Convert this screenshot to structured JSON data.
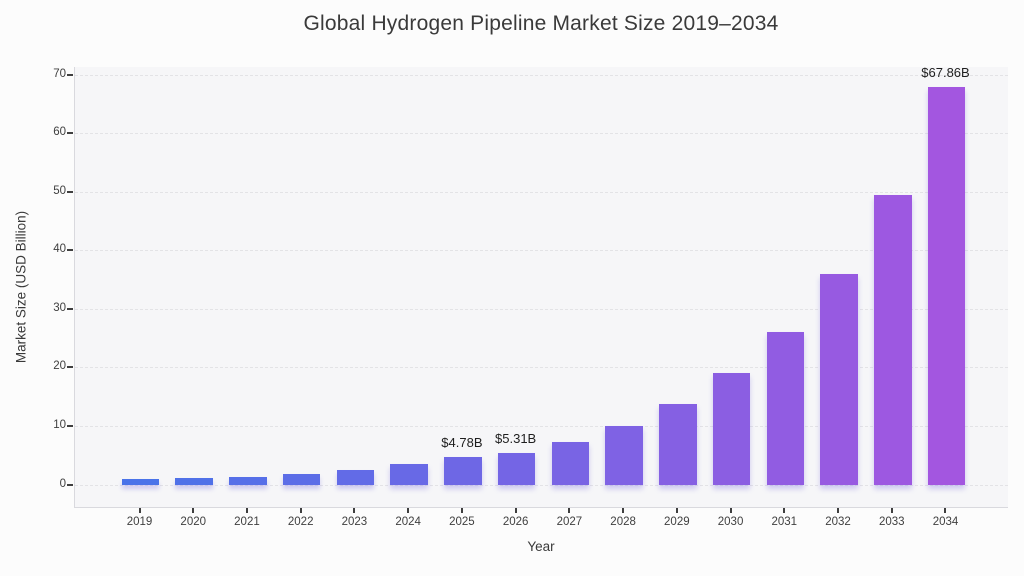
{
  "chart_data": {
    "type": "bar",
    "title": "Global Hydrogen Pipeline Market Size 2019–2034",
    "xlabel": "Year",
    "ylabel": "Market Size (USD Billion)",
    "categories": [
      "2019",
      "2020",
      "2021",
      "2022",
      "2023",
      "2024",
      "2025",
      "2026",
      "2027",
      "2028",
      "2029",
      "2030",
      "2031",
      "2032",
      "2033",
      "2034"
    ],
    "values": [
      0.92,
      1.08,
      1.36,
      1.86,
      2.45,
      3.45,
      4.78,
      5.31,
      7.3,
      10.04,
      13.81,
      18.99,
      26.11,
      35.9,
      49.36,
      67.86
    ],
    "annotations": [
      {
        "category": "2025",
        "label": "$4.78B"
      },
      {
        "category": "2026",
        "label": "$5.31B"
      },
      {
        "category": "2034",
        "label": "$67.86B"
      }
    ],
    "yticks": [
      0,
      10,
      20,
      30,
      40,
      50,
      60,
      70
    ],
    "ylim": [
      -4,
      71.3
    ],
    "grid": "horizontal-dashed",
    "legend": "none",
    "bar_color_start": "#4A73E9",
    "bar_color_end": "#A356E0"
  },
  "colors": {
    "fig_bg": "#fcfcfc",
    "plot_bg": "#f6f6f8",
    "grid": "#e3e3e6",
    "spine": "#d9d9de",
    "title": "#3a3a3a",
    "tick": "#3f3f3f",
    "annotation": "#1e1e1e"
  }
}
